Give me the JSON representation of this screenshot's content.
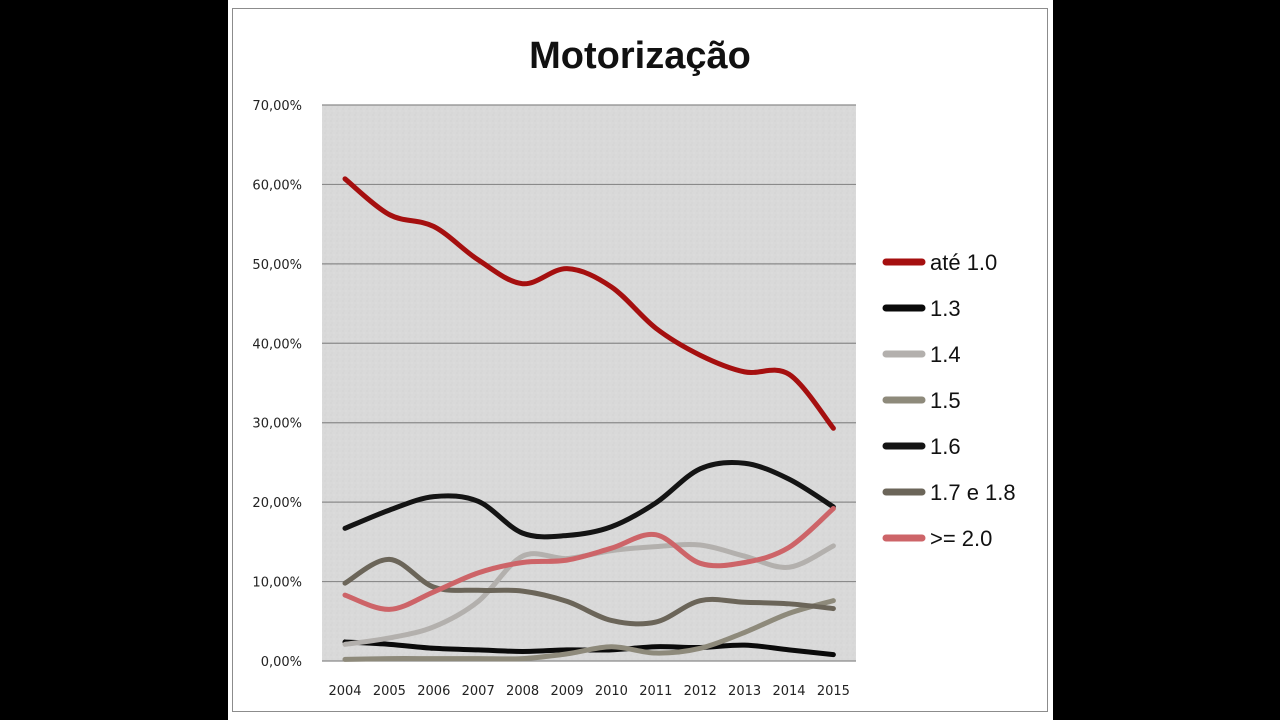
{
  "chart_data": {
    "type": "line",
    "title": "Motorização",
    "xlabel": "",
    "ylabel": "",
    "ylim": [
      0,
      70
    ],
    "yticks": [
      0,
      10,
      20,
      30,
      40,
      50,
      60,
      70
    ],
    "ytick_labels": [
      "0,00%",
      "10,00%",
      "20,00%",
      "30,00%",
      "40,00%",
      "50,00%",
      "60,00%",
      "70,00%"
    ],
    "categories": [
      "2004",
      "2005",
      "2006",
      "2007",
      "2008",
      "2009",
      "2010",
      "2011",
      "2012",
      "2013",
      "2014",
      "2015"
    ],
    "grid": true,
    "legend": "right",
    "series": [
      {
        "name": "até 1.0",
        "color": "#a50f0f",
        "values": [
          60.7,
          56.2,
          54.7,
          50.5,
          47.5,
          49.4,
          47.1,
          41.9,
          38.5,
          36.4,
          36.1,
          29.3
        ]
      },
      {
        "name": "1.3",
        "color": "#0a0a0a",
        "values": [
          2.4,
          2.1,
          1.6,
          1.4,
          1.2,
          1.4,
          1.4,
          1.8,
          1.7,
          2.0,
          1.4,
          0.8
        ]
      },
      {
        "name": "1.4",
        "color": "#b3b0ad",
        "values": [
          2.1,
          2.9,
          4.3,
          7.5,
          13.2,
          12.9,
          13.9,
          14.4,
          14.6,
          13.2,
          11.8,
          14.5
        ]
      },
      {
        "name": "1.5",
        "color": "#8e8a7b",
        "values": [
          0.2,
          0.3,
          0.3,
          0.3,
          0.3,
          0.9,
          1.8,
          1.0,
          1.6,
          3.6,
          6.0,
          7.6
        ]
      },
      {
        "name": "1.6",
        "color": "#141414",
        "values": [
          16.7,
          19.0,
          20.7,
          20.1,
          16.1,
          15.8,
          16.9,
          19.9,
          24.2,
          24.9,
          22.9,
          19.4
        ]
      },
      {
        "name": "1.7 e 1.8",
        "color": "#6b6559",
        "values": [
          9.8,
          12.8,
          9.3,
          8.9,
          8.8,
          7.5,
          5.1,
          4.9,
          7.6,
          7.4,
          7.2,
          6.6
        ]
      },
      {
        "name": ">= 2.0",
        "color": "#cd6468",
        "values": [
          8.3,
          6.5,
          8.7,
          11.1,
          12.4,
          12.7,
          14.2,
          15.9,
          12.3,
          12.4,
          14.3,
          19.2
        ]
      }
    ]
  }
}
